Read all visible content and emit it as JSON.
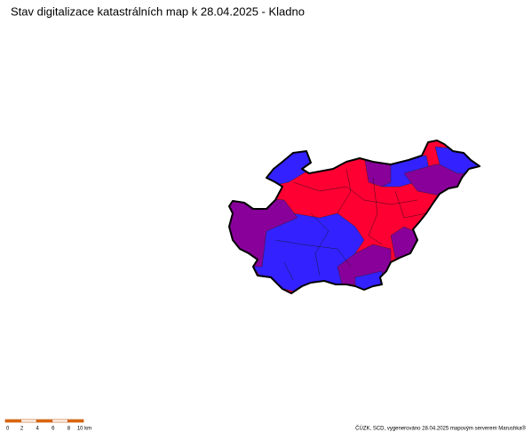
{
  "header": {
    "title": "Stav digitalizace katastrálních map k 28.04.2025 - Kladno"
  },
  "scale_bar": {
    "labels": [
      "0",
      "2",
      "4",
      "6",
      "8",
      "10 km"
    ]
  },
  "footer": {
    "credit": "ČÚZK, SCD, vygenerováno 28.04.2025 mapovým serverem Marushka®"
  }
}
